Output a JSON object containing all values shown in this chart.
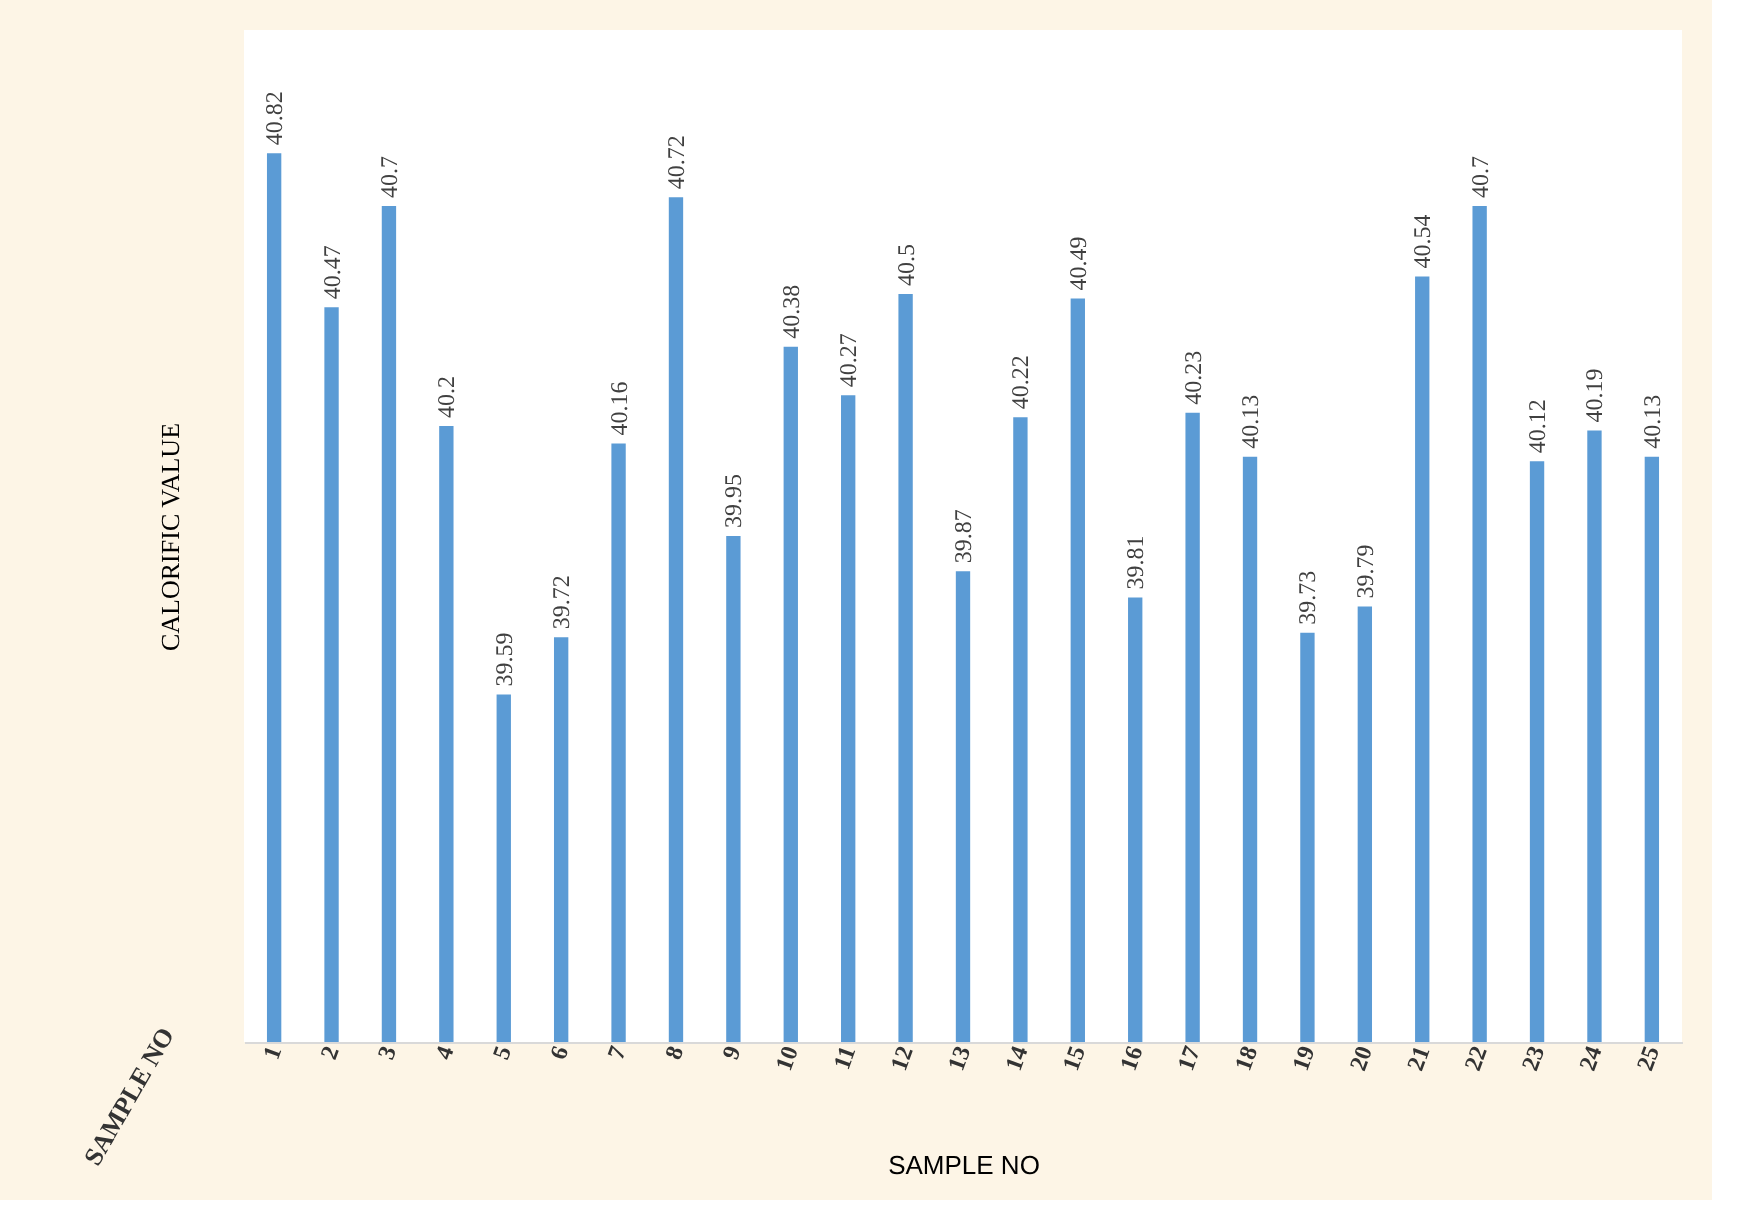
{
  "chart_data": {
    "type": "bar",
    "xlabel": "SAMPLE NO",
    "ylabel": "CALORIFIC VALUE",
    "categories": [
      "1",
      "2",
      "3",
      "4",
      "5",
      "6",
      "7",
      "8",
      "9",
      "10",
      "11",
      "12",
      "13",
      "14",
      "15",
      "16",
      "17",
      "18",
      "19",
      "20",
      "21",
      "22",
      "23",
      "24",
      "25"
    ],
    "values": [
      40.82,
      40.47,
      40.7,
      40.2,
      39.59,
      39.72,
      40.16,
      40.72,
      39.95,
      40.38,
      40.27,
      40.5,
      39.87,
      40.22,
      40.49,
      39.81,
      40.23,
      40.13,
      39.73,
      39.79,
      40.54,
      40.7,
      40.12,
      40.19,
      40.13
    ],
    "color": "#5b9bd5",
    "ylim": [
      38.8,
      41.1
    ],
    "tick_labels": "x",
    "data_labels": true,
    "grid": false,
    "annotations": [
      "SAMPLE NO"
    ]
  }
}
